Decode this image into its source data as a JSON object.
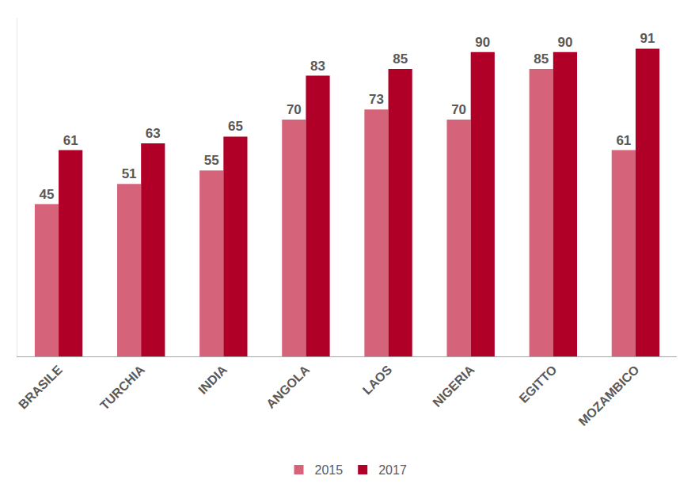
{
  "chart_data": {
    "type": "bar",
    "categories": [
      "BRASILE",
      "TURCHIA",
      "INDIA",
      "ANGOLA",
      "LAOS",
      "NIGERIA",
      "EGITTO",
      "MOZAMBICO"
    ],
    "series": [
      {
        "name": "2015",
        "color": "#d5647b",
        "values": [
          45,
          51,
          55,
          70,
          73,
          70,
          85,
          61
        ]
      },
      {
        "name": "2017",
        "color": "#b00028",
        "values": [
          61,
          63,
          65,
          83,
          85,
          90,
          90,
          91
        ]
      }
    ],
    "ylim": [
      0,
      100
    ],
    "grid": false,
    "legend": "bottom",
    "data_labels": true,
    "tick_labels": "x"
  }
}
